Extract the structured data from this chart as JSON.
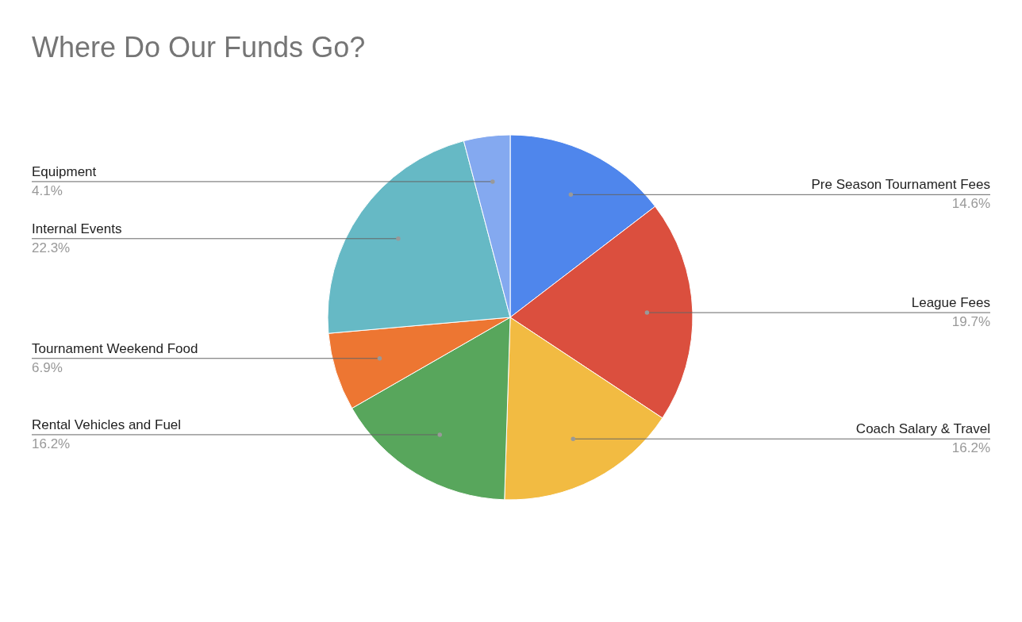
{
  "chart_data": {
    "type": "pie",
    "title": "Where Do Our Funds Go?",
    "categories": [
      "Pre Season Tournament Fees",
      "League Fees",
      "Coach Salary & Travel",
      "Rental Vehicles and Fuel",
      "Tournament Weekend Food",
      "Internal Events",
      "Equipment"
    ],
    "values": [
      14.6,
      19.7,
      16.2,
      16.2,
      6.9,
      22.3,
      4.1
    ],
    "colors": [
      "#4f86ec",
      "#db4f3e",
      "#f2bb42",
      "#58a65c",
      "#ed7632",
      "#66b9c5",
      "#84a9f0"
    ],
    "value_labels": [
      "14.6%",
      "19.7%",
      "16.2%",
      "16.2%",
      "6.9%",
      "22.3%",
      "4.1%"
    ]
  }
}
